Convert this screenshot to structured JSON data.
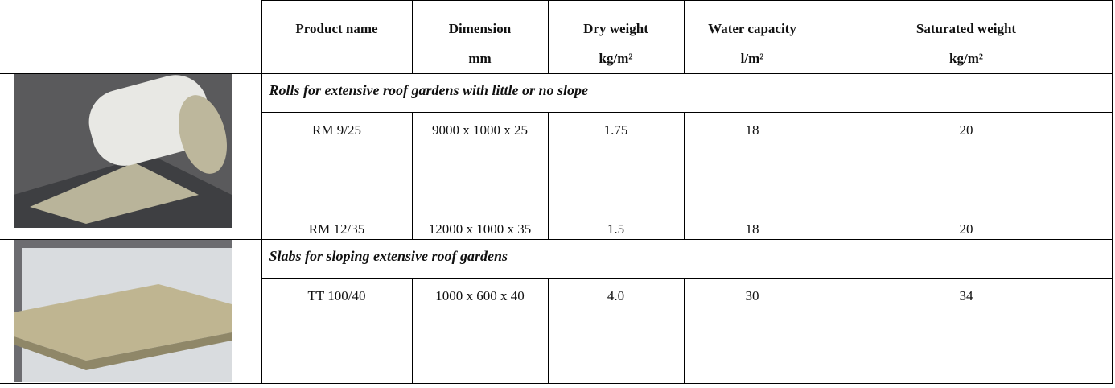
{
  "table": {
    "header": [
      [
        "Product name"
      ],
      [
        "Dimension",
        "mm"
      ],
      [
        "Dry weight",
        "kg/m²"
      ],
      [
        "Water capacity",
        "l/m²"
      ],
      [
        "Saturated weight",
        "kg/m²"
      ]
    ],
    "sections": [
      {
        "title": "Rolls for extensive roof gardens with little or no slope",
        "rows": [
          [
            "RM 9/25",
            "9000 x 1000 x 25",
            "1.75",
            "18",
            "20"
          ],
          [
            "RM 12/35",
            "12000 x 1000 x 35",
            "1.5",
            "18",
            "20"
          ]
        ]
      },
      {
        "title": "Slabs for sloping extensive roof gardens",
        "rows": [
          [
            "TT 100/40",
            "1000 x 600 x 40",
            "4.0",
            "30",
            "34"
          ]
        ]
      }
    ]
  }
}
